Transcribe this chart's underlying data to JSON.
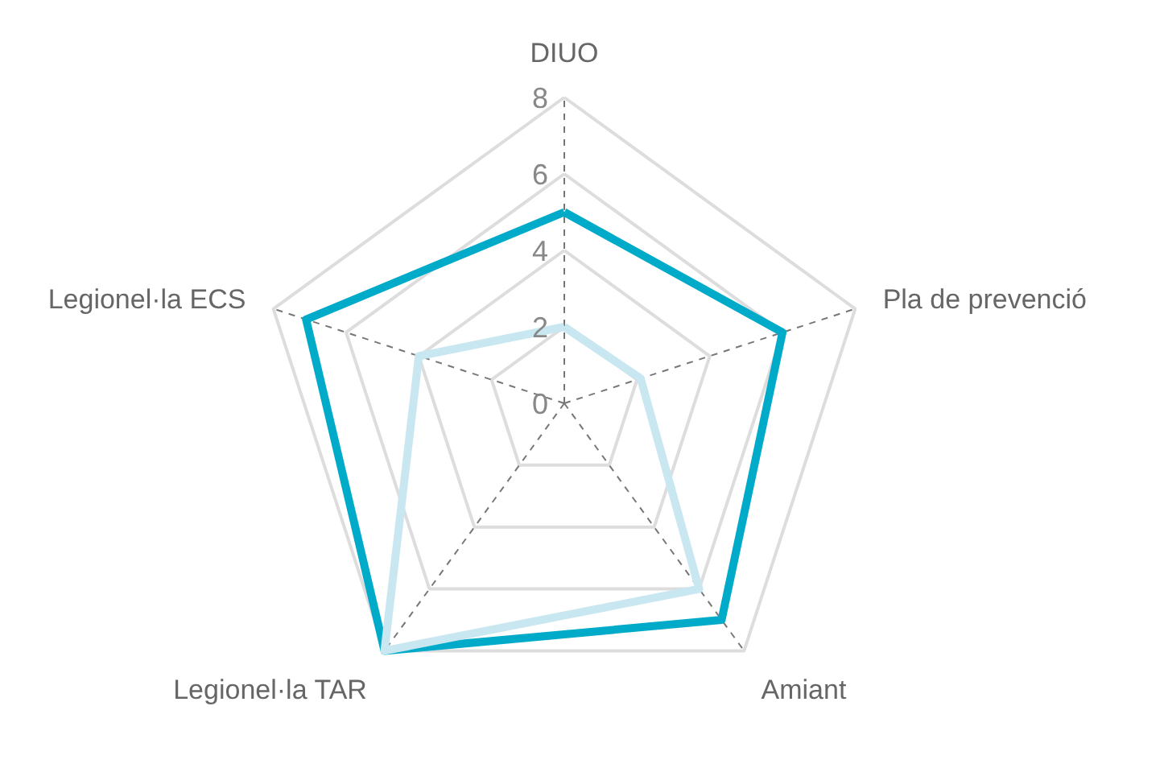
{
  "chart_data": {
    "type": "radar",
    "categories": [
      "DIUO",
      "Pla de prevenció",
      "Amiant",
      "Legionel·la TAR",
      "Legionel·la ECS"
    ],
    "series": [
      {
        "color": "#00abc9",
        "values": [
          5,
          6,
          7,
          8,
          7.1
        ]
      },
      {
        "color": "#c8e7f1",
        "values": [
          2,
          2.1,
          6,
          8,
          4
        ]
      }
    ],
    "ylim": [
      0,
      8
    ],
    "yticks": [
      0,
      2,
      4,
      6,
      8
    ],
    "grid": true
  }
}
